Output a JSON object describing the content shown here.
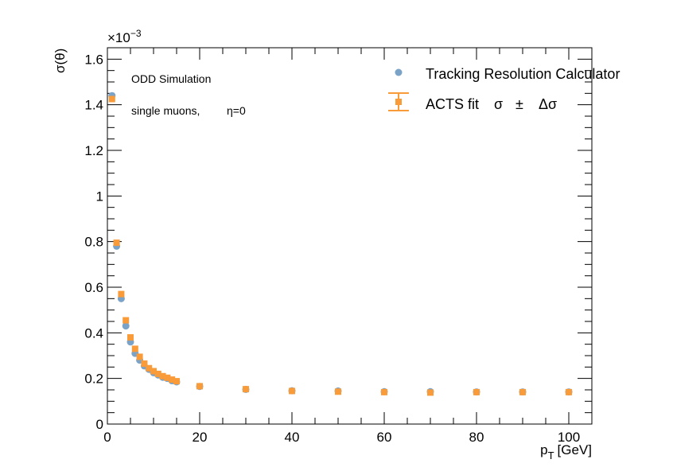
{
  "chart_data": {
    "type": "scatter",
    "title": "",
    "xlabel_main": "p",
    "xlabel_sub": "T",
    "xlabel_unit": "[GeV]",
    "ylabel": "σ(θ)",
    "y_multiplier_base": "×10",
    "y_multiplier_exp": "−3",
    "xlim": [
      0,
      105
    ],
    "ylim": [
      0,
      1.65
    ],
    "x_ticks": [
      0,
      20,
      40,
      60,
      80,
      100
    ],
    "y_ticks": [
      0,
      0.2,
      0.4,
      0.6,
      0.8,
      1,
      1.2,
      1.4,
      1.6
    ],
    "y_tick_labels": [
      "0",
      "0.2",
      "0.4",
      "0.6",
      "0.8",
      "1",
      "1.2",
      "1.4",
      "1.6"
    ],
    "x_tick_labels": [
      "0",
      "20",
      "40",
      "60",
      "80",
      "100"
    ],
    "annotations": {
      "line1": "ODD Simulation",
      "line2_prefix": "single muons,",
      "line2_eta": "η=0"
    },
    "legend": {
      "entry1": "Tracking Resolution Calculator",
      "entry2_label": "ACTS fit",
      "entry2_sigma": "σ",
      "entry2_pm": "±",
      "entry2_dsigma": "Δσ"
    },
    "series": [
      {
        "name": "Tracking Resolution Calculator",
        "marker": "circle",
        "color": "#7ba3c8",
        "x": [
          1,
          2,
          3,
          4,
          5,
          6,
          7,
          8,
          9,
          10,
          11,
          12,
          13,
          14,
          15,
          20,
          30,
          40,
          50,
          60,
          70,
          80,
          90,
          100
        ],
        "y": [
          1.44,
          0.78,
          0.55,
          0.43,
          0.36,
          0.31,
          0.28,
          0.255,
          0.24,
          0.225,
          0.215,
          0.205,
          0.2,
          0.19,
          0.185,
          0.165,
          0.152,
          0.146,
          0.145,
          0.142,
          0.142,
          0.141,
          0.141,
          0.141
        ]
      },
      {
        "name": "ACTS fit σ ± Δσ",
        "marker": "square",
        "color": "#f99b38",
        "x": [
          1,
          2,
          3,
          4,
          5,
          6,
          7,
          8,
          9,
          10,
          11,
          12,
          13,
          14,
          15,
          20,
          30,
          40,
          50,
          60,
          70,
          80,
          90,
          100
        ],
        "y": [
          1.425,
          0.795,
          0.57,
          0.455,
          0.38,
          0.33,
          0.295,
          0.265,
          0.245,
          0.232,
          0.22,
          0.21,
          0.203,
          0.195,
          0.188,
          0.166,
          0.153,
          0.145,
          0.142,
          0.14,
          0.138,
          0.14,
          0.14,
          0.14
        ],
        "yerr": [
          0.008,
          0.005,
          0.004,
          0.003,
          0.003,
          0.002,
          0.002,
          0.002,
          0.002,
          0.002,
          0.002,
          0.002,
          0.002,
          0.002,
          0.002,
          0.002,
          0.002,
          0.002,
          0.002,
          0.002,
          0.002,
          0.002,
          0.002,
          0.002
        ],
        "xerr": [
          0.5,
          0.5,
          0.5,
          0.5,
          0.5,
          0.5,
          0.5,
          0.5,
          0.5,
          0.5,
          0.5,
          0.5,
          0.5,
          0.5,
          0.5,
          0.5,
          0.5,
          0.5,
          0.5,
          0.5,
          0.5,
          0.5,
          0.5,
          0.5
        ]
      }
    ]
  }
}
